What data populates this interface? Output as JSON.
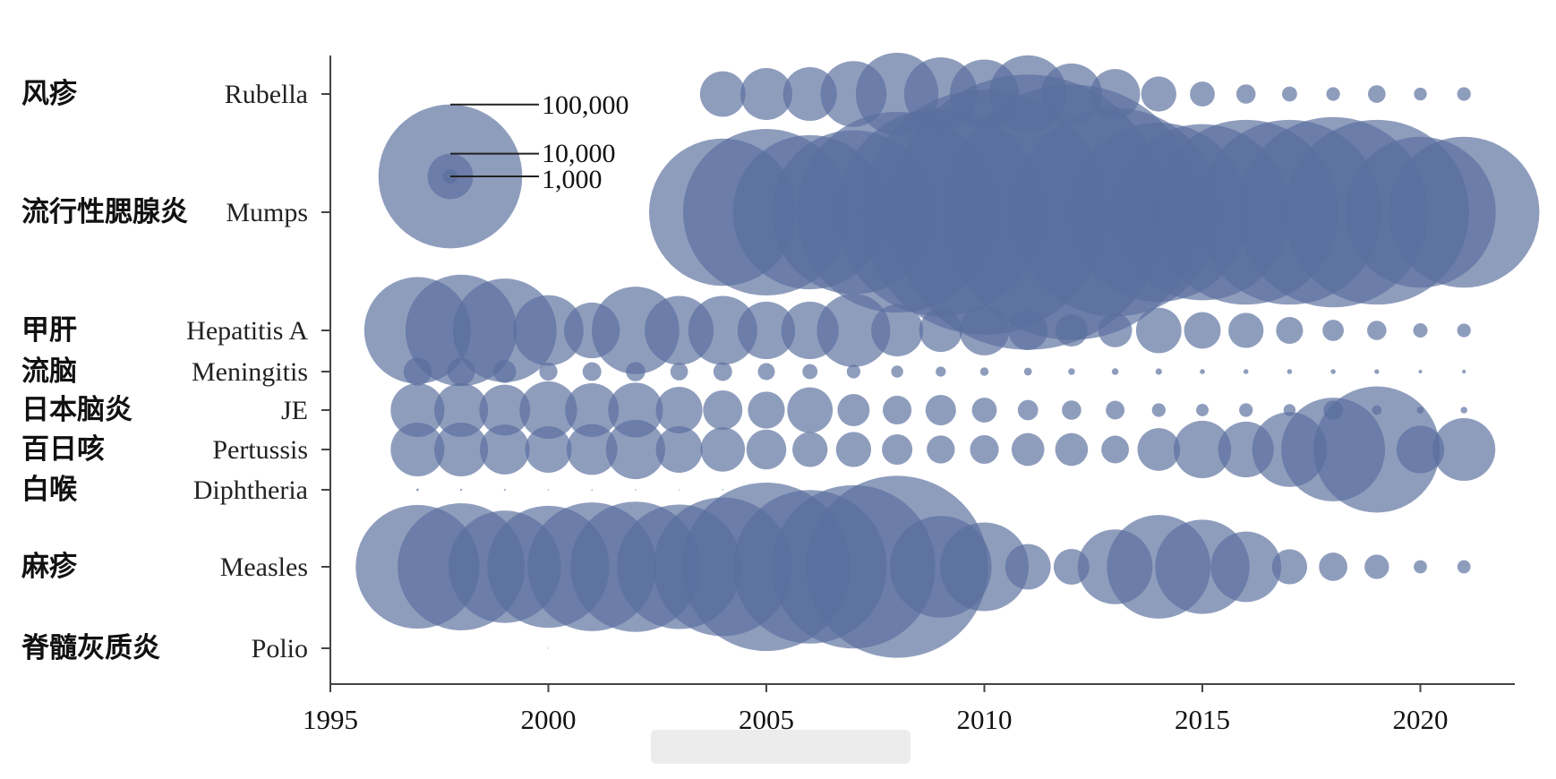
{
  "chart_data": {
    "type": "bubble",
    "bubble_color": "#5a6f9e",
    "bubble_opacity": 0.68,
    "x_axis": {
      "range": [
        1995,
        2022
      ],
      "ticks": [
        1995,
        2000,
        2005,
        2010,
        2015,
        2020
      ],
      "tick_labels": [
        "1995",
        "2000",
        "2005",
        "2010",
        "2015",
        "2020"
      ]
    },
    "size_legend": {
      "values": [
        100000,
        10000,
        1000
      ],
      "labels": [
        "100,000",
        "10,000",
        "1,000"
      ]
    },
    "diseases": [
      {
        "name_cn": "风疹",
        "name_en": "Rubella",
        "points": [
          [
            2004,
            10000
          ],
          [
            2005,
            13000
          ],
          [
            2006,
            14000
          ],
          [
            2007,
            21000
          ],
          [
            2008,
            33000
          ],
          [
            2009,
            26000
          ],
          [
            2010,
            23000
          ],
          [
            2011,
            29000
          ],
          [
            2012,
            18000
          ],
          [
            2013,
            12000
          ],
          [
            2014,
            6000
          ],
          [
            2015,
            3000
          ],
          [
            2016,
            1800
          ],
          [
            2017,
            1100
          ],
          [
            2018,
            900
          ],
          [
            2019,
            1500
          ],
          [
            2020,
            800
          ],
          [
            2021,
            900
          ]
        ]
      },
      {
        "name_cn": "流行性腮腺炎",
        "name_en": "Mumps",
        "points": [
          [
            2004,
            105000
          ],
          [
            2005,
            134000
          ],
          [
            2006,
            115000
          ],
          [
            2007,
            130000
          ],
          [
            2008,
            195000
          ],
          [
            2009,
            210000
          ],
          [
            2010,
            290000
          ],
          [
            2011,
            366000
          ],
          [
            2012,
            315000
          ],
          [
            2013,
            210000
          ],
          [
            2014,
            155000
          ],
          [
            2015,
            150000
          ],
          [
            2016,
            165000
          ],
          [
            2017,
            165000
          ],
          [
            2018,
            175000
          ],
          [
            2019,
            165000
          ],
          [
            2020,
            110000
          ],
          [
            2021,
            110000
          ]
        ]
      },
      {
        "name_cn": "甲肝",
        "name_en": "Hepatitis A",
        "points": [
          [
            1997,
            55000
          ],
          [
            1998,
            60000
          ],
          [
            1999,
            52000
          ],
          [
            2000,
            24000
          ],
          [
            2001,
            15000
          ],
          [
            2002,
            37000
          ],
          [
            2003,
            23000
          ],
          [
            2004,
            23000
          ],
          [
            2005,
            16000
          ],
          [
            2006,
            16000
          ],
          [
            2007,
            26000
          ],
          [
            2008,
            13000
          ],
          [
            2009,
            9000
          ],
          [
            2010,
            12000
          ],
          [
            2011,
            7500
          ],
          [
            2012,
            5000
          ],
          [
            2013,
            5500
          ],
          [
            2014,
            10000
          ],
          [
            2015,
            6500
          ],
          [
            2016,
            6000
          ],
          [
            2017,
            3500
          ],
          [
            2018,
            2200
          ],
          [
            2019,
            1800
          ],
          [
            2020,
            1000
          ],
          [
            2021,
            900
          ]
        ]
      },
      {
        "name_cn": "流脑",
        "name_en": "Meningitis",
        "points": [
          [
            1997,
            3800
          ],
          [
            1998,
            3700
          ],
          [
            1999,
            2500
          ],
          [
            2000,
            1600
          ],
          [
            2001,
            1700
          ],
          [
            2002,
            1800
          ],
          [
            2003,
            1500
          ],
          [
            2004,
            1700
          ],
          [
            2005,
            1400
          ],
          [
            2006,
            1100
          ],
          [
            2007,
            900
          ],
          [
            2008,
            700
          ],
          [
            2009,
            500
          ],
          [
            2010,
            350
          ],
          [
            2011,
            300
          ],
          [
            2012,
            220
          ],
          [
            2013,
            220
          ],
          [
            2014,
            200
          ],
          [
            2015,
            120
          ],
          [
            2016,
            120
          ],
          [
            2017,
            120
          ],
          [
            2018,
            120
          ],
          [
            2019,
            110
          ],
          [
            2020,
            60
          ],
          [
            2021,
            70
          ]
        ]
      },
      {
        "name_cn": "日本脑炎",
        "name_en": "JE",
        "points": [
          [
            1997,
            14000
          ],
          [
            1998,
            14000
          ],
          [
            1999,
            12500
          ],
          [
            2000,
            16000
          ],
          [
            2001,
            14000
          ],
          [
            2002,
            14500
          ],
          [
            2003,
            10500
          ],
          [
            2004,
            7500
          ],
          [
            2005,
            6600
          ],
          [
            2006,
            10000
          ],
          [
            2007,
            5000
          ],
          [
            2008,
            4000
          ],
          [
            2009,
            4500
          ],
          [
            2010,
            3000
          ],
          [
            2011,
            2000
          ],
          [
            2012,
            1800
          ],
          [
            2013,
            1700
          ],
          [
            2014,
            900
          ],
          [
            2015,
            750
          ],
          [
            2016,
            900
          ],
          [
            2017,
            700
          ],
          [
            2018,
            1800
          ],
          [
            2019,
            450
          ],
          [
            2020,
            230
          ],
          [
            2021,
            220
          ]
        ]
      },
      {
        "name_cn": "百日咳",
        "name_en": "Pertussis",
        "points": [
          [
            1997,
            14000
          ],
          [
            1998,
            14000
          ],
          [
            1999,
            12000
          ],
          [
            2000,
            10500
          ],
          [
            2001,
            12500
          ],
          [
            2002,
            17000
          ],
          [
            2003,
            10500
          ],
          [
            2004,
            9500
          ],
          [
            2005,
            7700
          ],
          [
            2006,
            6000
          ],
          [
            2007,
            6000
          ],
          [
            2008,
            4500
          ],
          [
            2009,
            3800
          ],
          [
            2010,
            4000
          ],
          [
            2011,
            5200
          ],
          [
            2012,
            5200
          ],
          [
            2013,
            3700
          ],
          [
            2014,
            8800
          ],
          [
            2015,
            16000
          ],
          [
            2016,
            15000
          ],
          [
            2017,
            27000
          ],
          [
            2018,
            52000
          ],
          [
            2019,
            77000
          ],
          [
            2020,
            11000
          ],
          [
            2021,
            19000
          ]
        ]
      },
      {
        "name_cn": "白喉",
        "name_en": "Diphtheria",
        "points": [
          [
            1997,
            30
          ],
          [
            1998,
            20
          ],
          [
            1999,
            15
          ],
          [
            2000,
            10
          ],
          [
            2001,
            10
          ],
          [
            2002,
            8
          ],
          [
            2003,
            5
          ],
          [
            2004,
            8
          ]
        ]
      },
      {
        "name_cn": "麻疹",
        "name_en": "Measles",
        "points": [
          [
            1997,
            74000
          ],
          [
            1998,
            78000
          ],
          [
            1999,
            61000
          ],
          [
            2000,
            72000
          ],
          [
            2001,
            80000
          ],
          [
            2002,
            82000
          ],
          [
            2003,
            75000
          ],
          [
            2004,
            93000
          ],
          [
            2005,
            137000
          ],
          [
            2006,
            114000
          ],
          [
            2007,
            129000
          ],
          [
            2008,
            160000
          ],
          [
            2009,
            50000
          ],
          [
            2010,
            38000
          ],
          [
            2011,
            10000
          ],
          [
            2012,
            6200
          ],
          [
            2013,
            27000
          ],
          [
            2014,
            52000
          ],
          [
            2015,
            43000
          ],
          [
            2016,
            24000
          ],
          [
            2017,
            6000
          ],
          [
            2018,
            3900
          ],
          [
            2019,
            2900
          ],
          [
            2020,
            850
          ],
          [
            2021,
            850
          ]
        ]
      },
      {
        "name_cn": "脊髓灰质炎",
        "name_en": "Polio",
        "points": [
          [
            2000,
            5
          ]
        ]
      }
    ]
  }
}
